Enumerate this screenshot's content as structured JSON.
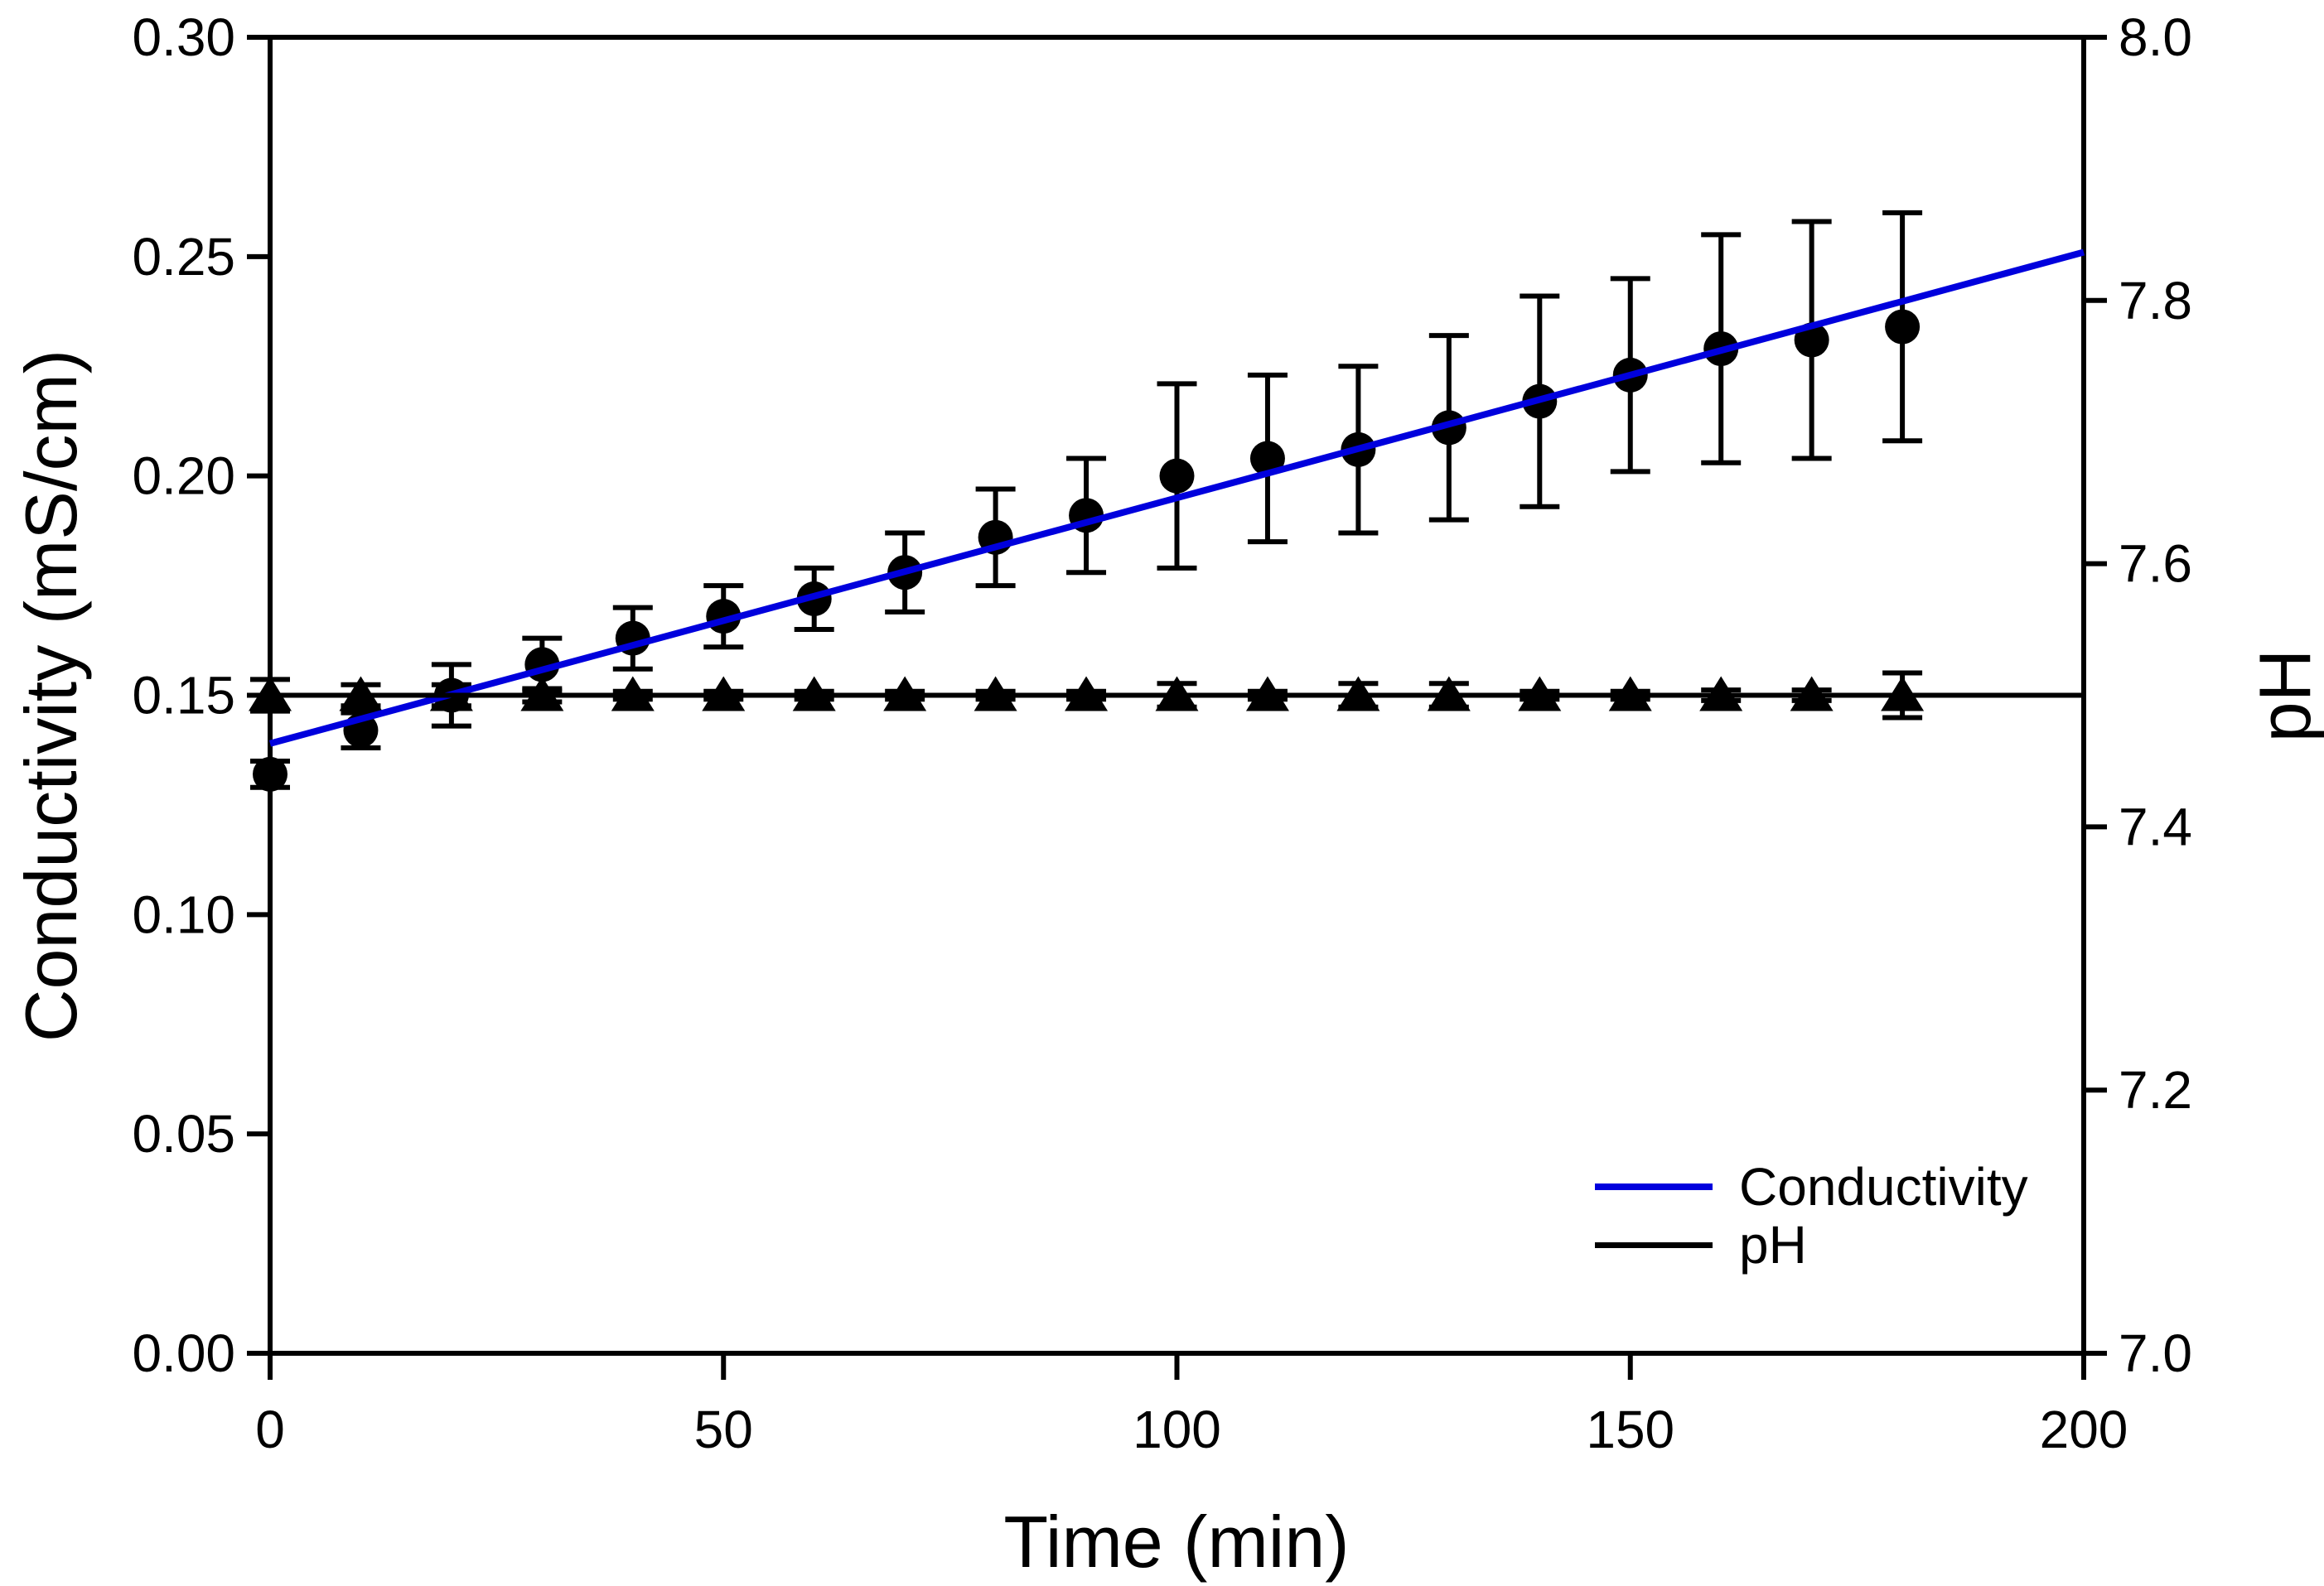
{
  "figure": {
    "background": "#ffffff"
  },
  "legend": {
    "items": [
      {
        "label": "Conductivity",
        "color": "#0000dd"
      },
      {
        "label": "pH",
        "color": "#000000"
      }
    ]
  },
  "chart_data": {
    "type": "scatter",
    "title": "",
    "x": [
      0,
      10,
      20,
      30,
      40,
      50,
      60,
      70,
      80,
      90,
      100,
      110,
      120,
      130,
      140,
      150,
      160,
      170,
      180
    ],
    "x_axis": {
      "label": "Time (min)",
      "min": 0,
      "max": 200,
      "ticks": [
        0,
        50,
        100,
        150,
        200
      ]
    },
    "left_axis": {
      "label": "Conductivity (mS/cm)",
      "min": 0.0,
      "max": 0.3,
      "ticks": [
        "0.00",
        "0.05",
        "0.10",
        "0.15",
        "0.20",
        "0.25",
        "0.30"
      ]
    },
    "right_axis": {
      "label": "pH",
      "min": 7.0,
      "max": 8.0,
      "ticks": [
        "7.0",
        "7.2",
        "7.4",
        "7.6",
        "7.8",
        "8.0"
      ]
    },
    "grid": false,
    "legend_position": "lower-right",
    "series": [
      {
        "name": "Conductivity",
        "axis": "left",
        "marker": "circle",
        "marker_color": "#000000",
        "values": [
          0.132,
          0.142,
          0.15,
          0.157,
          0.163,
          0.168,
          0.172,
          0.178,
          0.186,
          0.191,
          0.2,
          0.204,
          0.206,
          0.211,
          0.217,
          0.223,
          0.229,
          0.231,
          0.234
        ],
        "errors": [
          0.003,
          0.004,
          0.007,
          0.006,
          0.007,
          0.007,
          0.007,
          0.009,
          0.011,
          0.013,
          0.021,
          0.019,
          0.019,
          0.021,
          0.024,
          0.022,
          0.026,
          0.027,
          0.026
        ]
      },
      {
        "name": "pH",
        "axis": "right",
        "marker": "triangle",
        "marker_color": "#000000",
        "values": [
          7.5,
          7.5,
          7.5,
          7.5,
          7.5,
          7.5,
          7.5,
          7.5,
          7.5,
          7.5,
          7.5,
          7.5,
          7.5,
          7.5,
          7.5,
          7.5,
          7.5,
          7.5,
          7.5
        ],
        "errors": [
          0.012,
          0.008,
          0.008,
          0.005,
          0.003,
          0.003,
          0.003,
          0.003,
          0.003,
          0.003,
          0.009,
          0.003,
          0.009,
          0.009,
          0.003,
          0.003,
          0.004,
          0.004,
          0.017
        ]
      }
    ],
    "lines": [
      {
        "name": "Conductivity regression",
        "axis": "left",
        "color": "#0000dd",
        "x": [
          0,
          200
        ],
        "y": [
          0.139,
          0.251
        ]
      },
      {
        "name": "pH reference",
        "axis": "right",
        "color": "#000000",
        "x": [
          0,
          200
        ],
        "y": [
          7.5,
          7.5
        ]
      }
    ]
  }
}
